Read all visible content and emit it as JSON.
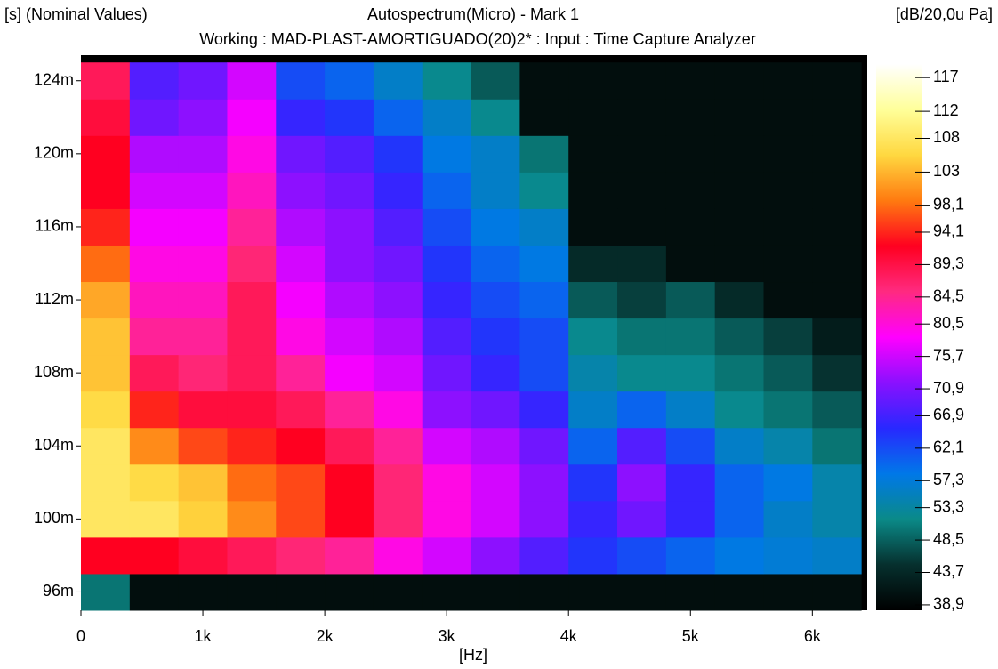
{
  "chart_data": {
    "type": "heatmap",
    "title": "Autospectrum(Micro) - Mark 1",
    "subtitle": "Working : MAD-PLAST-AMORTIGUADO(20)2* : Input : Time Capture Analyzer",
    "y_label": "[s] (Nominal Values)",
    "colorbar_label": "[dB/20,0u Pa]",
    "x_label": "[Hz]",
    "x": [
      200,
      600,
      1000,
      1400,
      1800,
      2200,
      2600,
      3000,
      3400,
      3800,
      4200,
      4600,
      5000,
      5400,
      5800,
      6200
    ],
    "y": [
      0.096,
      0.098,
      0.1,
      0.102,
      0.104,
      0.106,
      0.108,
      0.11,
      0.112,
      0.114,
      0.116,
      0.118,
      0.12,
      0.122,
      0.124
    ],
    "values": [
      [
        50,
        40,
        40,
        40,
        40,
        40,
        40,
        40,
        40,
        40,
        40,
        40,
        40,
        40,
        40,
        40
      ],
      [
        92,
        92,
        90,
        88,
        86,
        84,
        80,
        76,
        72,
        68,
        64,
        62,
        60,
        58,
        57,
        56
      ],
      [
        108,
        108,
        105,
        100,
        96,
        92,
        86,
        80,
        76,
        72,
        66,
        70,
        66,
        60,
        56,
        54
      ],
      [
        108,
        106,
        104,
        98,
        96,
        92,
        86,
        80,
        76,
        72,
        64,
        72,
        66,
        60,
        58,
        54
      ],
      [
        108,
        100,
        96,
        94,
        92,
        88,
        84,
        76,
        74,
        70,
        60,
        68,
        62,
        56,
        54,
        50
      ],
      [
        106,
        94,
        90,
        90,
        88,
        84,
        80,
        72,
        70,
        66,
        56,
        60,
        56,
        52,
        50,
        48
      ],
      [
        104,
        88,
        86,
        88,
        84,
        78,
        76,
        70,
        66,
        62,
        54,
        52,
        52,
        50,
        48,
        45
      ],
      [
        104,
        84,
        84,
        88,
        80,
        76,
        74,
        68,
        64,
        62,
        52,
        50,
        50,
        48,
        46,
        42
      ],
      [
        102,
        82,
        82,
        88,
        78,
        74,
        72,
        66,
        62,
        60,
        48,
        46,
        48,
        44,
        40,
        40
      ],
      [
        98,
        80,
        80,
        86,
        76,
        72,
        70,
        64,
        60,
        58,
        44,
        44,
        40,
        40,
        40,
        40
      ],
      [
        94,
        78,
        78,
        84,
        74,
        72,
        68,
        62,
        58,
        56,
        40,
        40,
        40,
        40,
        40,
        40
      ],
      [
        92,
        76,
        76,
        82,
        72,
        70,
        66,
        60,
        56,
        52,
        40,
        40,
        40,
        40,
        40,
        40
      ],
      [
        92,
        74,
        74,
        80,
        70,
        68,
        64,
        58,
        56,
        50,
        40,
        40,
        40,
        40,
        40,
        40
      ],
      [
        90,
        70,
        72,
        78,
        66,
        64,
        60,
        56,
        52,
        40,
        40,
        40,
        40,
        40,
        40,
        40
      ],
      [
        88,
        68,
        70,
        76,
        62,
        60,
        56,
        52,
        48,
        40,
        40,
        40,
        40,
        40,
        40,
        40
      ]
    ],
    "xlim": [
      0,
      6450
    ],
    "ylim": [
      0.095,
      0.1254
    ],
    "clim": [
      38.1,
      119
    ],
    "xticks": [
      0,
      {
        "value": 1000,
        "label": "1k"
      },
      {
        "value": 2000,
        "label": "2k"
      },
      {
        "value": 3000,
        "label": "3k"
      },
      {
        "value": 4000,
        "label": "4k"
      },
      {
        "value": 5000,
        "label": "5k"
      },
      {
        "value": 6000,
        "label": "6k"
      }
    ],
    "yticks": [
      {
        "value": 0.096,
        "label": "96m"
      },
      {
        "value": 0.1,
        "label": "100m"
      },
      {
        "value": 0.104,
        "label": "104m"
      },
      {
        "value": 0.108,
        "label": "108m"
      },
      {
        "value": 0.112,
        "label": "112m"
      },
      {
        "value": 0.116,
        "label": "116m"
      },
      {
        "value": 0.12,
        "label": "120m"
      },
      {
        "value": 0.124,
        "label": "124m"
      }
    ],
    "cticks": [
      117,
      112,
      108,
      103,
      {
        "value": 98.1,
        "label": "98,1"
      },
      {
        "value": 94.1,
        "label": "94,1"
      },
      {
        "value": 89.3,
        "label": "89,3"
      },
      {
        "value": 84.5,
        "label": "84,5"
      },
      {
        "value": 80.5,
        "label": "80,5"
      },
      {
        "value": 75.7,
        "label": "75,7"
      },
      {
        "value": 70.9,
        "label": "70,9"
      },
      {
        "value": 66.9,
        "label": "66,9"
      },
      {
        "value": 62.1,
        "label": "62,1"
      },
      {
        "value": 57.3,
        "label": "57,3"
      },
      {
        "value": 53.3,
        "label": "53,3"
      },
      {
        "value": 48.5,
        "label": "48,5"
      },
      {
        "value": 43.7,
        "label": "43,7"
      },
      {
        "value": 38.9,
        "label": "38,9"
      }
    ],
    "colormap": [
      "#000000",
      "#06302e",
      "#0a8a88",
      "#0078e8",
      "#2828ff",
      "#8a10ff",
      "#ff00ff",
      "#ff2a80",
      "#ff0020",
      "#ff7a10",
      "#ffd840",
      "#ffff9a",
      "#ffffff"
    ]
  }
}
